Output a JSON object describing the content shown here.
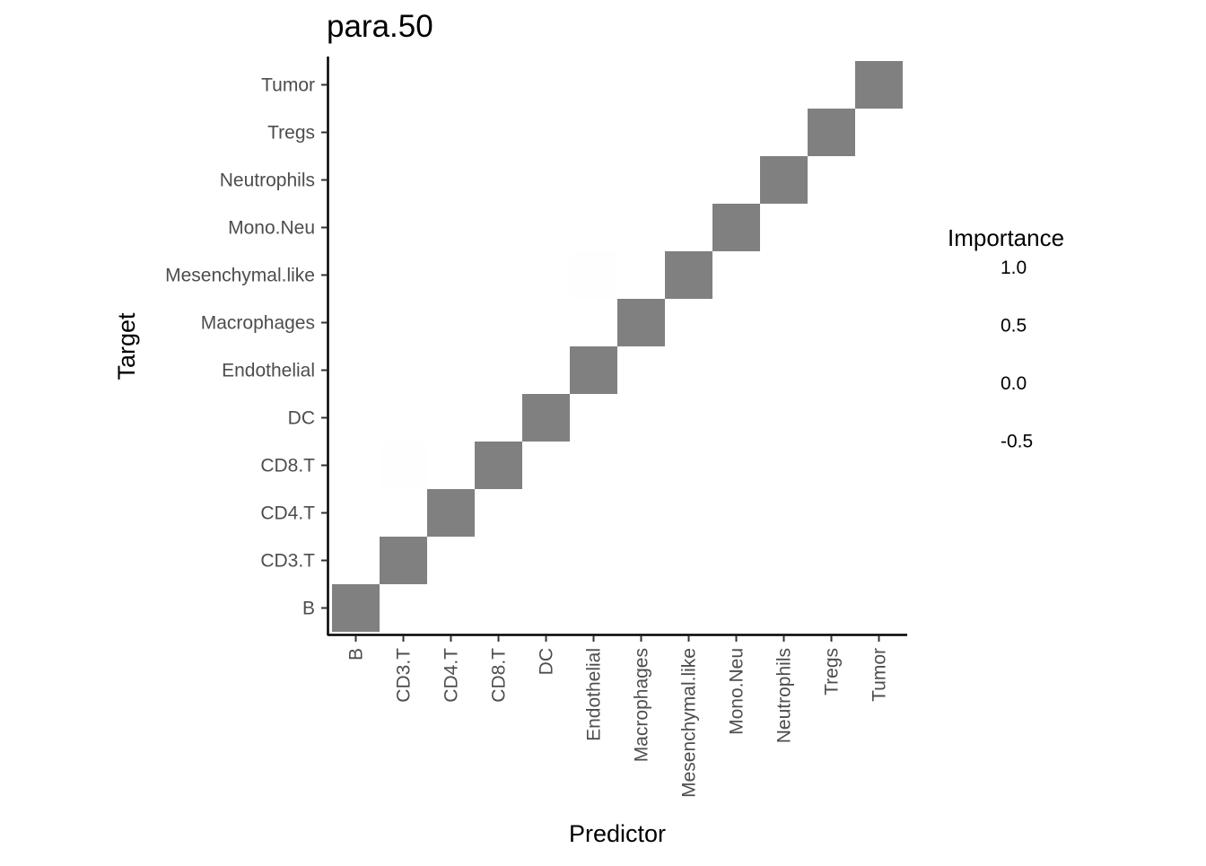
{
  "chart_data": {
    "type": "heatmap",
    "title": "para.50",
    "xlabel": "Predictor",
    "ylabel": "Target",
    "x_categories": [
      "B",
      "CD3.T",
      "CD4.T",
      "CD8.T",
      "DC",
      "Endothelial",
      "Macrophages",
      "Mesenchymal.like",
      "Mono.Neu",
      "Neutrophils",
      "Tregs",
      "Tumor"
    ],
    "y_categories": [
      "B",
      "CD3.T",
      "CD4.T",
      "CD8.T",
      "DC",
      "Endothelial",
      "Macrophages",
      "Mesenchymal.like",
      "Mono.Neu",
      "Neutrophils",
      "Tregs",
      "Tumor"
    ],
    "cells": [
      {
        "x": "B",
        "y": "B",
        "value": null
      },
      {
        "x": "CD3.T",
        "y": "CD3.T",
        "value": null
      },
      {
        "x": "CD4.T",
        "y": "CD4.T",
        "value": null
      },
      {
        "x": "CD8.T",
        "y": "CD8.T",
        "value": null
      },
      {
        "x": "DC",
        "y": "DC",
        "value": null
      },
      {
        "x": "Endothelial",
        "y": "Endothelial",
        "value": null
      },
      {
        "x": "Macrophages",
        "y": "Macrophages",
        "value": null
      },
      {
        "x": "Mesenchymal.like",
        "y": "Mesenchymal.like",
        "value": null
      },
      {
        "x": "Mono.Neu",
        "y": "Mono.Neu",
        "value": null
      },
      {
        "x": "Neutrophils",
        "y": "Neutrophils",
        "value": null
      },
      {
        "x": "Tregs",
        "y": "Tregs",
        "value": null
      },
      {
        "x": "Tumor",
        "y": "Tumor",
        "value": null
      },
      {
        "x": "CD3.T",
        "y": "CD8.T",
        "value": 0.02
      },
      {
        "x": "Endothelial",
        "y": "Mesenchymal.like",
        "value": 0.02
      }
    ],
    "na_color": "#808080",
    "legend": {
      "title": "Importance",
      "breaks": [
        "1.0",
        "0.5",
        "0.0",
        "-0.5"
      ],
      "position": "right"
    },
    "grid": false
  }
}
